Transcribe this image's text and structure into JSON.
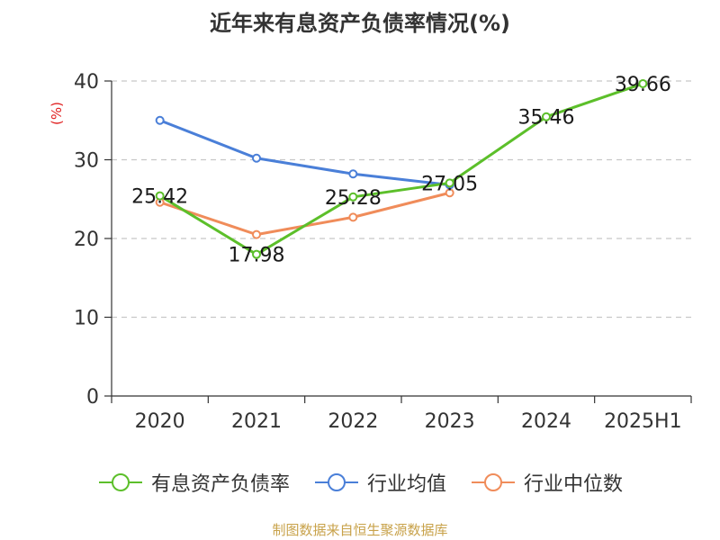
{
  "title": "近年来有息资产负债率情况(%)",
  "source": "制图数据来自恒生聚源数据库",
  "chart_data": {
    "type": "line",
    "title": "近年来有息资产负债率情况(%)",
    "ylabel": "(%)",
    "categories": [
      "2020",
      "2021",
      "2022",
      "2023",
      "2024",
      "2025H1"
    ],
    "ylim": [
      0,
      40
    ],
    "yticks": [
      0,
      10,
      20,
      30,
      40
    ],
    "grid": true,
    "legend_position": "bottom",
    "series": [
      {
        "name": "有息资产负债率",
        "color": "#5cbf2a",
        "values": [
          25.42,
          17.98,
          25.28,
          27.05,
          35.46,
          39.66
        ],
        "labels": [
          "25.42",
          "17.98",
          "25.28",
          "27.05",
          "35.46",
          "39.66"
        ]
      },
      {
        "name": "行业均值",
        "color": "#4a7fd8",
        "values": [
          35.0,
          30.2,
          28.2,
          26.8,
          null,
          null
        ]
      },
      {
        "name": "行业中位数",
        "color": "#f08c5a",
        "values": [
          24.6,
          20.5,
          22.7,
          25.8,
          null,
          null
        ]
      }
    ]
  }
}
